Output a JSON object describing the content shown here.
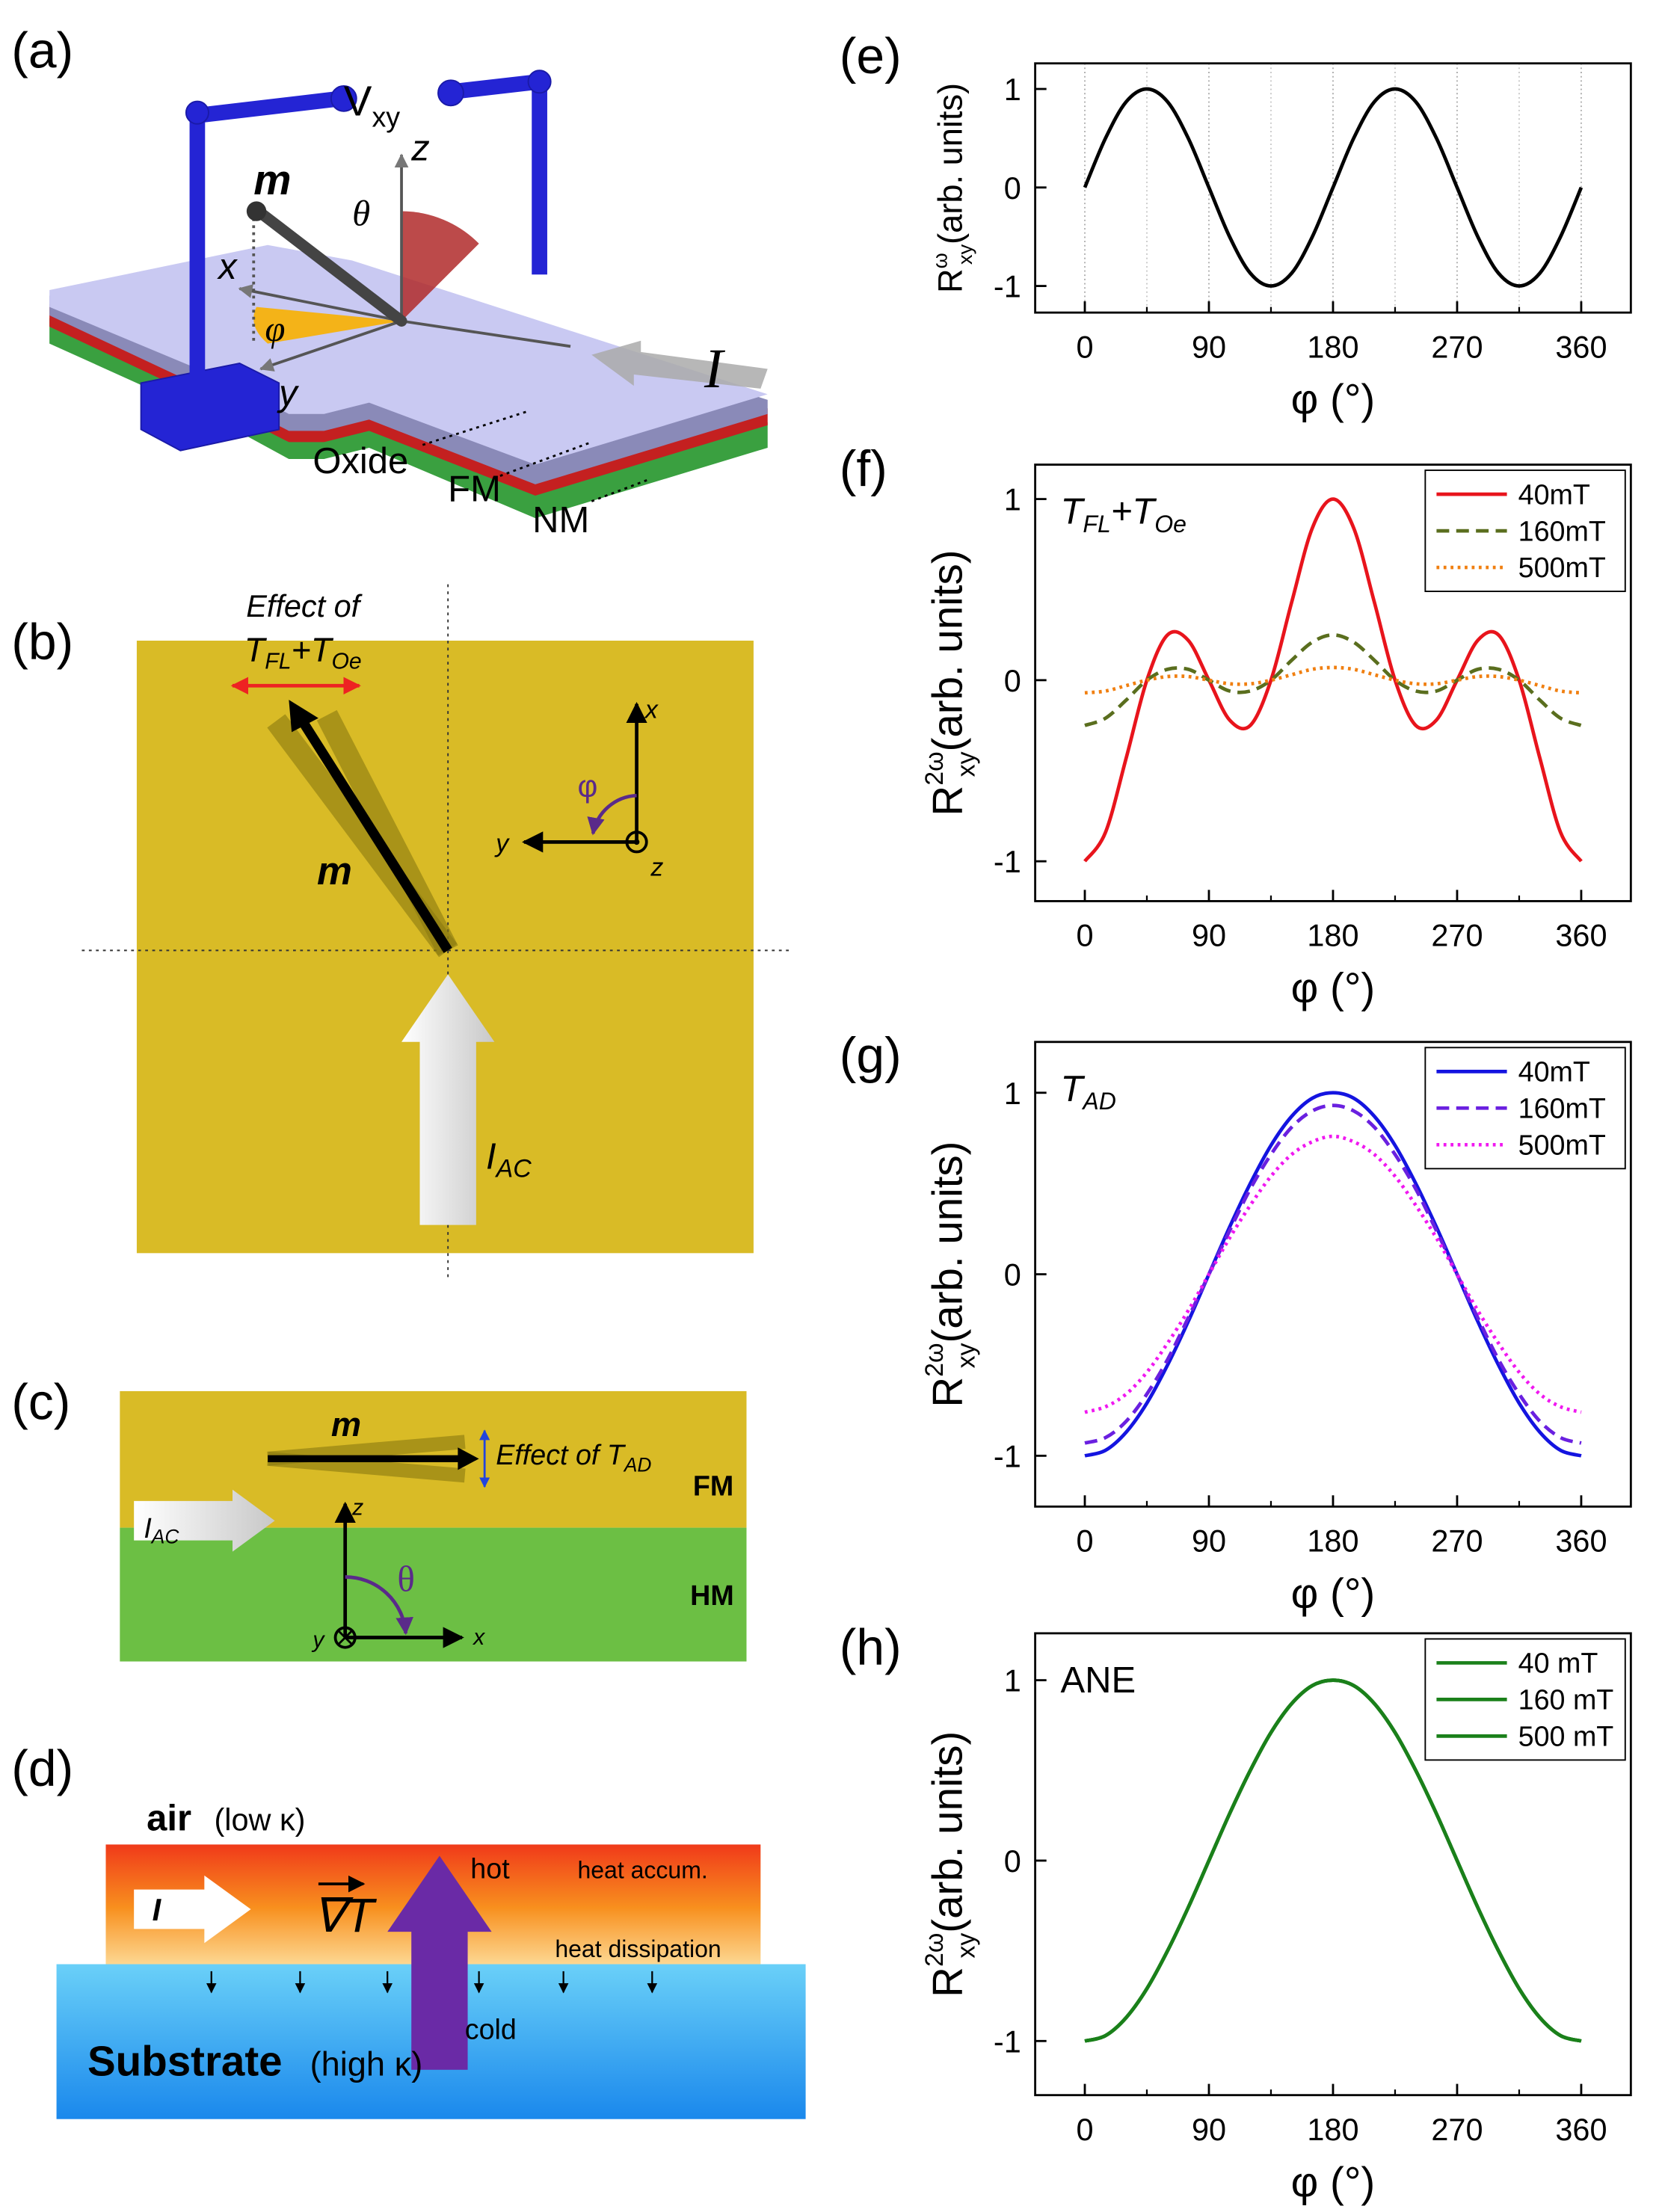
{
  "panel_labels": [
    "(a)",
    "(b)",
    "(c)",
    "(d)",
    "(e)",
    "(f)",
    "(g)",
    "(h)"
  ],
  "diagram_a": {
    "voltage": "V",
    "voltage_sub": "xy",
    "m": "m",
    "z": "z",
    "theta": "θ",
    "x": "x",
    "phi": "φ",
    "y": "y",
    "current": "I",
    "layers": [
      "Oxide",
      "FM",
      "NM"
    ]
  },
  "diagram_b": {
    "effect": "Effect of",
    "t1": "T",
    "t1_sub": "FL",
    "plus": "+",
    "t2": "T",
    "t2_sub": "Oe",
    "m": "m",
    "x": "x",
    "y": "y",
    "z": "z",
    "phi": "φ",
    "current": "I",
    "current_sub": "AC"
  },
  "diagram_c": {
    "m": "m",
    "effect": "Effect of T",
    "effect_sub": "AD",
    "fm": "FM",
    "hm": "HM",
    "current": "I",
    "current_sub": "AC",
    "z": "z",
    "theta": "θ",
    "y": "y",
    "x": "x"
  },
  "diagram_d": {
    "air": "air",
    "air_note": "(low κ)",
    "hot": "hot",
    "accum": "heat accum.",
    "current": "I",
    "gradient": "∇T",
    "dissipation": "heat dissipation",
    "cold": "cold",
    "substrate": "Substrate",
    "substrate_note": "(high κ)"
  },
  "chart_data": [
    {
      "type": "line",
      "xlabel": "φ (°)",
      "ylabel": [
        "R",
        "ω",
        "xy",
        "(arb. units)"
      ],
      "x": [
        0,
        15,
        30,
        45,
        60,
        75,
        90,
        105,
        120,
        135,
        150,
        165,
        180,
        195,
        210,
        225,
        240,
        255,
        270,
        285,
        300,
        315,
        330,
        345,
        360
      ],
      "series": [
        {
          "name": null,
          "color": "#000000",
          "dash": "solid",
          "values": [
            0,
            0.5,
            0.87,
            1,
            0.87,
            0.5,
            0,
            -0.5,
            -0.87,
            -1,
            -0.87,
            -0.5,
            0,
            0.5,
            0.87,
            1,
            0.87,
            0.5,
            0,
            -0.5,
            -0.87,
            -1,
            -0.87,
            -0.5,
            0
          ]
        }
      ],
      "xlim": [
        -36,
        396
      ],
      "ylim": [
        -1.27,
        1.26
      ],
      "xticks": [
        0,
        90,
        180,
        270,
        360
      ],
      "minor_xticks": [
        45,
        135,
        225,
        315
      ],
      "yticks": [
        -1,
        0,
        1
      ],
      "grid": true
    },
    {
      "type": "line",
      "xlabel": "φ (°)",
      "ylabel": [
        "R",
        "2ω",
        "xy",
        "(arb. units)"
      ],
      "annotation": [
        "T",
        "FL",
        "+T",
        "Oe"
      ],
      "x": [
        0,
        15,
        30,
        45,
        60,
        75,
        90,
        105,
        120,
        135,
        150,
        165,
        180,
        195,
        210,
        225,
        240,
        255,
        270,
        285,
        300,
        315,
        330,
        345,
        360
      ],
      "series": [
        {
          "name": "40mT",
          "color": "#e8141c",
          "dash": "solid",
          "values": [
            -1,
            -0.84,
            -0.43,
            0,
            0.25,
            0.22,
            0,
            -0.22,
            -0.25,
            0,
            0.43,
            0.84,
            1,
            0.84,
            0.43,
            0,
            -0.25,
            -0.22,
            0,
            0.22,
            0.25,
            0,
            -0.43,
            -0.84,
            -1
          ]
        },
        {
          "name": "160mT",
          "color": "#5a6e1e",
          "dash": "dashed",
          "values": [
            -0.25,
            -0.21,
            -0.11,
            0,
            0.06,
            0.06,
            0,
            -0.06,
            -0.06,
            0,
            0.11,
            0.21,
            0.25,
            0.21,
            0.11,
            0,
            -0.06,
            -0.06,
            0,
            0.06,
            0.06,
            0,
            -0.11,
            -0.21,
            -0.25
          ]
        },
        {
          "name": "500mT",
          "color": "#f07f10",
          "dash": "dotted",
          "values": [
            -0.07,
            -0.06,
            -0.03,
            0,
            0.02,
            0.02,
            0,
            -0.02,
            -0.02,
            0,
            0.03,
            0.06,
            0.07,
            0.06,
            0.03,
            0,
            -0.02,
            -0.02,
            0,
            0.02,
            0.02,
            0,
            -0.03,
            -0.06,
            -0.07
          ]
        }
      ],
      "xlim": [
        -36,
        396
      ],
      "ylim": [
        -1.22,
        1.19
      ],
      "xticks": [
        0,
        90,
        180,
        270,
        360
      ],
      "minor_xticks": [
        45,
        135,
        225,
        315
      ],
      "yticks": [
        -1,
        0,
        1
      ],
      "grid": false,
      "legend": "upper right"
    },
    {
      "type": "line",
      "xlabel": "φ (°)",
      "ylabel": [
        "R",
        "2ω",
        "xy",
        "(arb. units)"
      ],
      "annotation": [
        "T",
        "AD"
      ],
      "x": [
        0,
        15,
        30,
        45,
        60,
        75,
        90,
        105,
        120,
        135,
        150,
        165,
        180,
        195,
        210,
        225,
        240,
        255,
        270,
        285,
        300,
        315,
        330,
        345,
        360
      ],
      "series": [
        {
          "name": "40mT",
          "color": "#1414e0",
          "dash": "solid",
          "values": [
            -1,
            -0.97,
            -0.87,
            -0.71,
            -0.5,
            -0.26,
            0,
            0.26,
            0.5,
            0.71,
            0.87,
            0.97,
            1,
            0.97,
            0.87,
            0.71,
            0.5,
            0.26,
            0,
            -0.26,
            -0.5,
            -0.71,
            -0.87,
            -0.97,
            -1
          ]
        },
        {
          "name": "160mT",
          "color": "#6a20e0",
          "dash": "dashed",
          "values": [
            -0.93,
            -0.9,
            -0.81,
            -0.66,
            -0.47,
            -0.24,
            0,
            0.24,
            0.47,
            0.66,
            0.81,
            0.9,
            0.93,
            0.9,
            0.81,
            0.66,
            0.47,
            0.24,
            0,
            -0.24,
            -0.47,
            -0.66,
            -0.81,
            -0.9,
            -0.93
          ]
        },
        {
          "name": "500mT",
          "color": "#f018f0",
          "dash": "dotted",
          "values": [
            -0.76,
            -0.73,
            -0.66,
            -0.54,
            -0.38,
            -0.2,
            0,
            0.2,
            0.38,
            0.54,
            0.66,
            0.73,
            0.76,
            0.73,
            0.66,
            0.54,
            0.38,
            0.2,
            0,
            -0.2,
            -0.38,
            -0.54,
            -0.66,
            -0.73,
            -0.76
          ]
        }
      ],
      "xlim": [
        -36,
        396
      ],
      "ylim": [
        -1.28,
        1.28
      ],
      "xticks": [
        0,
        90,
        180,
        270,
        360
      ],
      "minor_xticks": [
        45,
        135,
        225,
        315
      ],
      "yticks": [
        -1,
        0,
        1
      ],
      "grid": false,
      "legend": "upper right"
    },
    {
      "type": "line",
      "xlabel": "φ (°)",
      "ylabel": [
        "R",
        "2ω",
        "xy",
        "(arb. units)"
      ],
      "annotation": [
        "ANE"
      ],
      "x": [
        0,
        15,
        30,
        45,
        60,
        75,
        90,
        105,
        120,
        135,
        150,
        165,
        180,
        195,
        210,
        225,
        240,
        255,
        270,
        285,
        300,
        315,
        330,
        345,
        360
      ],
      "series": [
        {
          "name": "40 mT",
          "color": "#1a801a",
          "dash": "solid",
          "values": [
            -1,
            -0.97,
            -0.87,
            -0.71,
            -0.5,
            -0.26,
            0,
            0.26,
            0.5,
            0.71,
            0.87,
            0.97,
            1,
            0.97,
            0.87,
            0.71,
            0.5,
            0.26,
            0,
            -0.26,
            -0.5,
            -0.71,
            -0.87,
            -0.97,
            -1
          ]
        },
        {
          "name": "160 mT",
          "color": "#1a801a",
          "dash": "solid",
          "values": [
            -1,
            -0.97,
            -0.87,
            -0.71,
            -0.5,
            -0.26,
            0,
            0.26,
            0.5,
            0.71,
            0.87,
            0.97,
            1,
            0.97,
            0.87,
            0.71,
            0.5,
            0.26,
            0,
            -0.26,
            -0.5,
            -0.71,
            -0.87,
            -0.97,
            -1
          ]
        },
        {
          "name": "500 mT",
          "color": "#1a801a",
          "dash": "solid",
          "values": [
            -1,
            -0.97,
            -0.87,
            -0.71,
            -0.5,
            -0.26,
            0,
            0.26,
            0.5,
            0.71,
            0.87,
            0.97,
            1,
            0.97,
            0.87,
            0.71,
            0.5,
            0.26,
            0,
            -0.26,
            -0.5,
            -0.71,
            -0.87,
            -0.97,
            -1
          ]
        }
      ],
      "xlim": [
        -36,
        396
      ],
      "ylim": [
        -1.3,
        1.26
      ],
      "xticks": [
        0,
        90,
        180,
        270,
        360
      ],
      "minor_xticks": [
        45,
        135,
        225,
        315
      ],
      "yticks": [
        -1,
        0,
        1
      ],
      "grid": false,
      "legend": "upper right"
    }
  ]
}
